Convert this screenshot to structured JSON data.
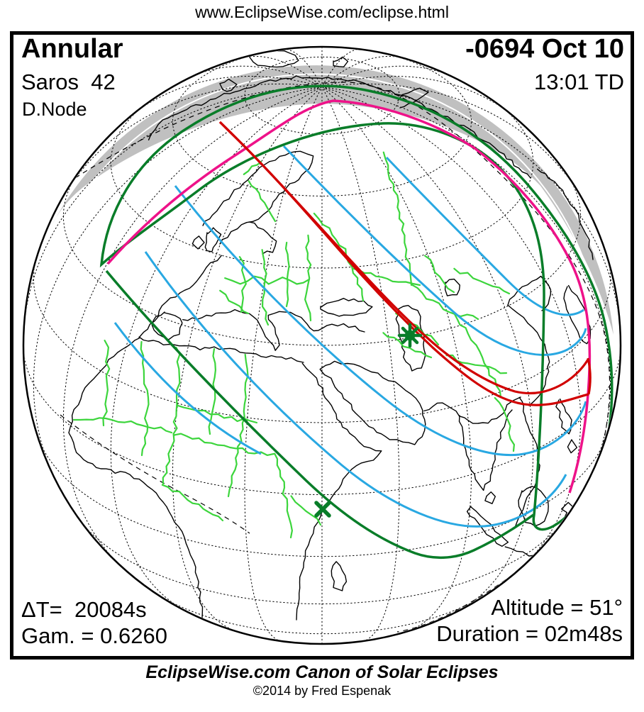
{
  "page_url_text": "www.EclipseWise.com/eclipse.html",
  "eclipse": {
    "type": "Annular",
    "saros": "Saros  42",
    "node": "D.Node",
    "date": "-0694 Oct 10",
    "time": "13:01 TD",
    "delta_t": "ΔT=  20084s",
    "gamma": "Gam. = 0.6260",
    "altitude": "Altitude = 51°",
    "duration": "Duration = 02m48s"
  },
  "footer": {
    "title": "EclipseWise.com Canon of Solar Eclipses",
    "copyright": "©2014 by Fred Espenak"
  },
  "map": {
    "markers": {
      "greatest_eclipse": "star-marker",
      "sunrise_sunset_point": "x-marker"
    },
    "colors": {
      "night_shading": "#c0c0c0",
      "coastline": "#000000",
      "country_border": "#3cd53c",
      "penumbra_limit": "#ee1289",
      "sunrise_sunset": "#097d29",
      "central_path": "#d10000",
      "contour": "#29a8e2",
      "graticule": "#000000"
    }
  }
}
